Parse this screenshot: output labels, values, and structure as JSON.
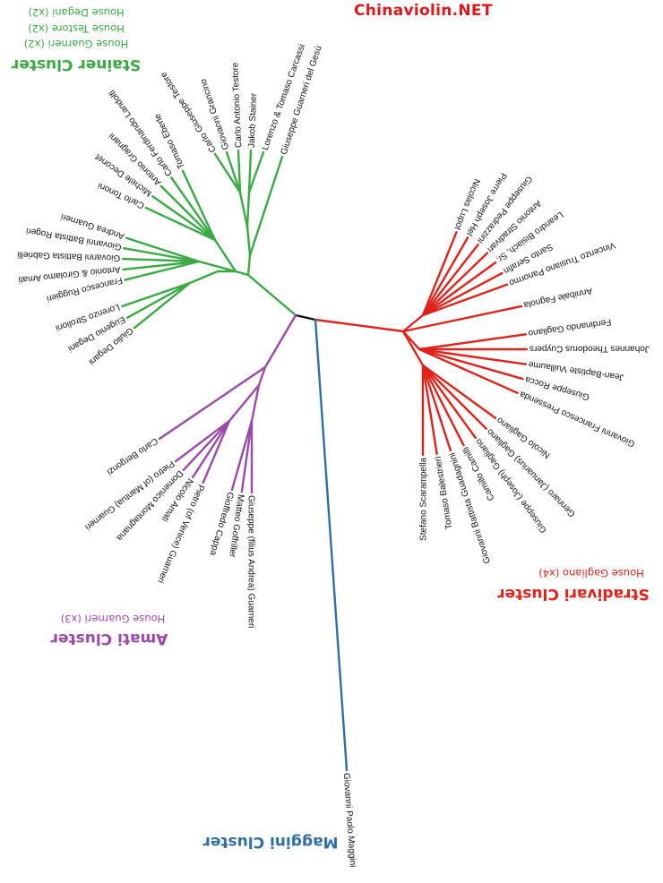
{
  "watermark": "Chinaviolin.NET",
  "colors": {
    "stainer": "#3aaa45",
    "stradivari": "#e0231b",
    "amati": "#9a4aa8",
    "maggini": "#2f6fa6",
    "root": "#111111"
  },
  "clusters": {
    "stainer": {
      "title": "Stainer Cluster",
      "subtitles": [
        "House Guarneri (x2)",
        "House Testore (x2)",
        "House Degani (x2)"
      ],
      "leaves": [
        "Carlo Giuseppe Testore",
        "Giovanni Grancino",
        "Carlo Antonio Testore",
        "Jakob Stainer",
        "Lorenzo & Tomaso Carcassi",
        "Giuseppe Guarneri del Gesù",
        "Tomaso Eberle",
        "Carlo Ferdinando Landolfi",
        "Antonio Gragnani",
        "Michele Deconet",
        "Carlo Tononi",
        "Andrea Guarneri",
        "Giovanni Battista Rogeri",
        "Giovanni Battista Gabrielli",
        "Antonio & Girolamo Amati",
        "Francesco Ruggieri",
        "Lorenzo Strolioni",
        "Eugenio Degani",
        "Giulio Degani"
      ]
    },
    "stradivari": {
      "title": "Stradivari Cluster",
      "subtitles": [
        "House Gagliano (x4)"
      ],
      "leaves": [
        "Nicolas Lupot",
        "Pierre Joseph Hel",
        "Giuseppe Pedrazzini",
        "Antonio Stradivari",
        "Leandro Bisiach, Sr.",
        "Santo Serafin",
        "Vincenzo Trusiano Panormo",
        "Annibale Fagnola",
        "Ferdinando Gagliano",
        "Johannes Theodorus Cuypers",
        "Jean-Baptiste Vuillaume",
        "Giuseppe Rocca",
        "Giovanni Francesco Pressenda",
        "Nicolo Gagliano",
        "Gennaro (Januarius) Gagliano",
        "Giuseppe (Joseph) Gagliano",
        "Camillo Camilli",
        "Giovanni Battista Guadagnini",
        "Tomaso Balestrieri",
        "Stefano Scarampella"
      ]
    },
    "amati": {
      "title": "Amati Cluster",
      "subtitles": [
        "House Guarneri (x3)"
      ],
      "leaves": [
        "Carlo Bergonzi",
        "Pietro (of Mantua) Guarneri",
        "Domenico Montagnana",
        "Nicolo Amati",
        "Pietro (of Venice) Guarneri",
        "Gioffredo Cappa",
        "Matteo Goffriller",
        "Giuseppe (filius Andrea) Guarneri"
      ]
    },
    "maggini": {
      "title": "Maggini Cluster",
      "subtitles": [],
      "leaves": [
        "Giovanni Paolo Maggini"
      ]
    }
  }
}
